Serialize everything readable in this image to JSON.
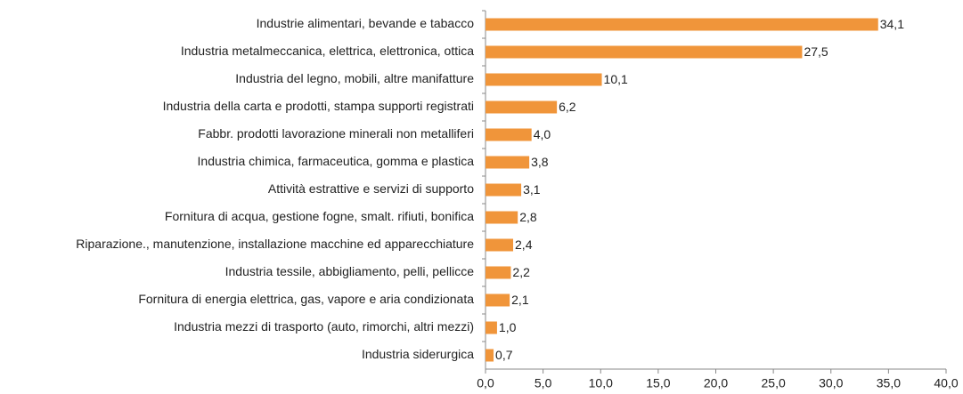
{
  "chart_data": {
    "type": "bar",
    "orientation": "horizontal",
    "categories": [
      "Industrie alimentari, bevande e tabacco",
      "Industria metalmeccanica, elettrica, elettronica, ottica",
      "Industria del legno, mobili, altre manifatture",
      "Industria della carta e prodotti, stampa supporti registrati",
      "Fabbr. prodotti lavorazione minerali non metalliferi",
      "Industria chimica, farmaceutica, gomma e plastica",
      "Attività estrattive e servizi di supporto",
      "Fornitura di acqua, gestione fogne, smalt. rifiuti, bonifica",
      "Riparazione., manutenzione, installazione macchine ed apparecchiature",
      "Industria tessile, abbigliamento, pelli, pellicce",
      "Fornitura di energia elettrica, gas, vapore e aria condizionata",
      "Industria mezzi di trasporto (auto, rimorchi, altri mezzi)",
      "Industria siderurgica"
    ],
    "values": [
      34.1,
      27.5,
      10.1,
      6.2,
      4.0,
      3.8,
      3.1,
      2.8,
      2.4,
      2.2,
      2.1,
      1.0,
      0.7
    ],
    "value_labels": [
      "34,1",
      "27,5",
      "10,1",
      "6,2",
      "4,0",
      "3,8",
      "3,1",
      "2,8",
      "2,4",
      "2,2",
      "2,1",
      "1,0",
      "0,7"
    ],
    "color": "#f0953a",
    "xlim": [
      0,
      40
    ],
    "xticks": [
      {
        "value": 0,
        "label": "0,0"
      },
      {
        "value": 5,
        "label": "5,0"
      },
      {
        "value": 10,
        "label": "10,0"
      },
      {
        "value": 15,
        "label": "15,0"
      },
      {
        "value": 20,
        "label": "20,0"
      },
      {
        "value": 25,
        "label": "25,0"
      },
      {
        "value": 30,
        "label": "30,0"
      },
      {
        "value": 35,
        "label": "35,0"
      },
      {
        "value": 40,
        "label": "40,0"
      }
    ]
  }
}
